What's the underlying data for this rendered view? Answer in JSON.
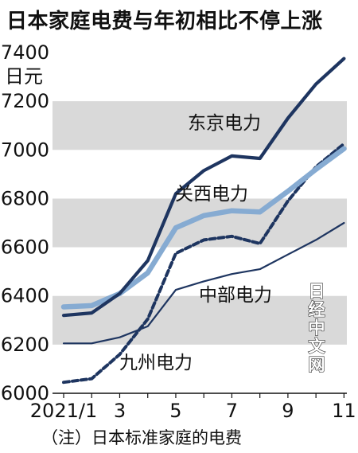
{
  "chart_data": {
    "type": "line",
    "title": "日本家庭电费与年初相比不停上涨",
    "ylabel": "日元",
    "note": "（注）日本标准家庭的电费",
    "watermark": [
      "日",
      "经",
      "中",
      "文",
      "网"
    ],
    "x": [
      1,
      2,
      3,
      4,
      5,
      6,
      7,
      8,
      9,
      10,
      11
    ],
    "xticks": [
      {
        "x": 1,
        "label": "2021/1"
      },
      {
        "x": 3,
        "label": "3"
      },
      {
        "x": 5,
        "label": "5"
      },
      {
        "x": 7,
        "label": "7"
      },
      {
        "x": 9,
        "label": "9"
      },
      {
        "x": 11,
        "label": "11"
      }
    ],
    "ylim": [
      6000,
      7400
    ],
    "yticks": [
      6000,
      6200,
      6400,
      6600,
      6800,
      7000,
      7200,
      7400
    ],
    "grid": "alternating horizontal bands",
    "series": [
      {
        "name": "东京电力",
        "color": "#1e3560",
        "style": "solid",
        "values": [
          6320,
          6330,
          6410,
          6545,
          6820,
          6915,
          6975,
          6965,
          7130,
          7270,
          7375
        ]
      },
      {
        "name": "关西电力",
        "color": "#86abd2",
        "style": "solid-thick",
        "values": [
          6355,
          6360,
          6410,
          6495,
          6680,
          6730,
          6750,
          6745,
          6830,
          6920,
          7005
        ]
      },
      {
        "name": "中部电力",
        "color": "#1e3560",
        "style": "dashed",
        "values": [
          6045,
          6060,
          6160,
          6305,
          6575,
          6630,
          6645,
          6615,
          6790,
          6930,
          7025
        ]
      },
      {
        "name": "九州电力",
        "color": "#1e3560",
        "style": "solid-thin",
        "values": [
          6205,
          6205,
          6230,
          6275,
          6425,
          6460,
          6490,
          6510,
          6570,
          6630,
          6700
        ]
      }
    ]
  }
}
